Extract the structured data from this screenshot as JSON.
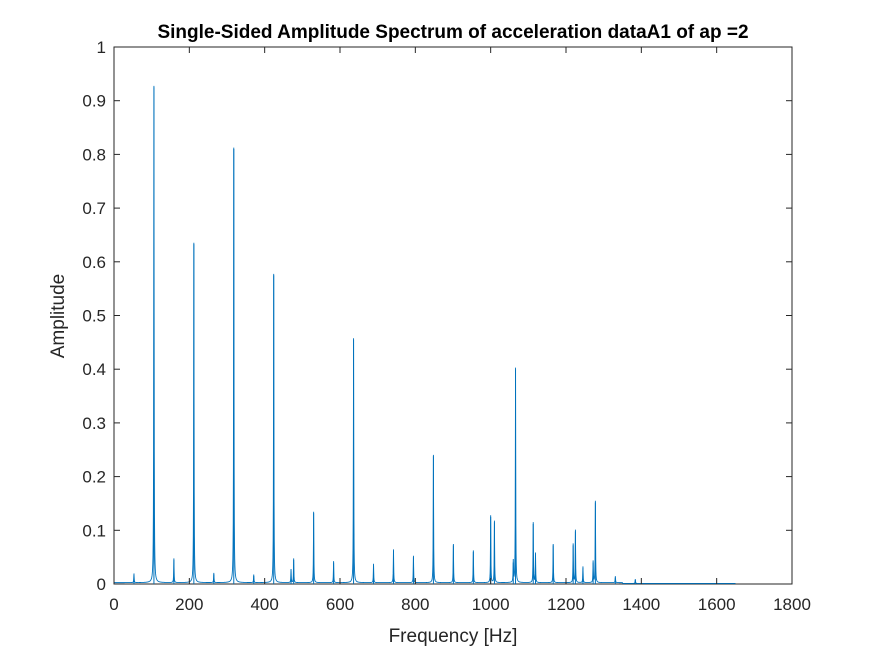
{
  "chart_data": {
    "type": "line",
    "title": "Single-Sided Amplitude Spectrum of acceleration dataA1 of ap =2",
    "xlabel": "Frequency [Hz]",
    "ylabel": "Amplitude",
    "xlim": [
      0,
      1800
    ],
    "ylim": [
      0,
      1
    ],
    "x_ticks": [
      "0",
      "200",
      "400",
      "600",
      "800",
      "1000",
      "1200",
      "1400",
      "1600",
      "1800"
    ],
    "y_ticks": [
      "0",
      "0.1",
      "0.2",
      "0.3",
      "0.4",
      "0.5",
      "0.6",
      "0.7",
      "0.8",
      "0.9",
      "1"
    ],
    "grid": false,
    "line_color": "#0072BD",
    "series": [
      {
        "peaks": [
          {
            "x": 53,
            "y": 0.017
          },
          {
            "x": 106,
            "y": 0.925
          },
          {
            "x": 159,
            "y": 0.045
          },
          {
            "x": 212,
            "y": 0.633
          },
          {
            "x": 265,
            "y": 0.018
          },
          {
            "x": 318,
            "y": 0.81
          },
          {
            "x": 371,
            "y": 0.015
          },
          {
            "x": 424,
            "y": 0.575
          },
          {
            "x": 470,
            "y": 0.025
          },
          {
            "x": 477,
            "y": 0.045
          },
          {
            "x": 530,
            "y": 0.132
          },
          {
            "x": 583,
            "y": 0.04
          },
          {
            "x": 636,
            "y": 0.455
          },
          {
            "x": 689,
            "y": 0.035
          },
          {
            "x": 742,
            "y": 0.062
          },
          {
            "x": 795,
            "y": 0.05
          },
          {
            "x": 848,
            "y": 0.238
          },
          {
            "x": 901,
            "y": 0.072
          },
          {
            "x": 954,
            "y": 0.06
          },
          {
            "x": 1000,
            "y": 0.125
          },
          {
            "x": 1010,
            "y": 0.115
          },
          {
            "x": 1060,
            "y": 0.04
          },
          {
            "x": 1066,
            "y": 0.4
          },
          {
            "x": 1113,
            "y": 0.112
          },
          {
            "x": 1119,
            "y": 0.055
          },
          {
            "x": 1166,
            "y": 0.072
          },
          {
            "x": 1219,
            "y": 0.072
          },
          {
            "x": 1225,
            "y": 0.098
          },
          {
            "x": 1245,
            "y": 0.03
          },
          {
            "x": 1272,
            "y": 0.04
          },
          {
            "x": 1278,
            "y": 0.152
          },
          {
            "x": 1331,
            "y": 0.012
          },
          {
            "x": 1384,
            "y": 0.008
          }
        ]
      }
    ]
  }
}
